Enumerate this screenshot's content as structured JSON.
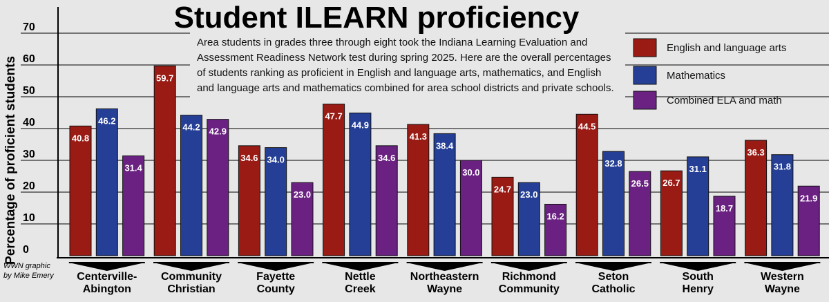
{
  "chart_data": {
    "type": "bar",
    "title": "Student ILEARN proficiency",
    "subtitle": [
      "Area students in grades three through eight took the Indiana Learning Evaluation and",
      "Assessment Readiness Network test during spring 2025. Here are the overall percentages",
      "of students ranking as proficient in English and language arts, mathematics, and English",
      "and language arts and mathematics combined for area school districts and private schools."
    ],
    "ylabel": "Percentage of proficient students",
    "xlabel": "",
    "ylim": [
      0,
      70
    ],
    "yticks": [
      "0",
      "10",
      "20",
      "30",
      "40",
      "50",
      "60",
      "70"
    ],
    "categories": [
      [
        "Centerville-",
        "Abington"
      ],
      [
        "Community",
        "Christian"
      ],
      [
        "Fayette",
        "County"
      ],
      [
        "Nettle",
        "Creek"
      ],
      [
        "Northeastern",
        "Wayne"
      ],
      [
        "Richmond",
        "Community"
      ],
      [
        "Seton",
        "Catholic"
      ],
      [
        "South",
        "Henry"
      ],
      [
        "Western",
        "Wayne"
      ]
    ],
    "series": [
      {
        "name": "English and language arts",
        "color": "#9a1a14",
        "values": [
          40.8,
          59.7,
          34.6,
          47.7,
          41.3,
          24.7,
          44.5,
          26.7,
          36.3
        ],
        "labels": [
          "40.8",
          "59.7",
          "34.6",
          "47.7",
          "41.3",
          "24.7",
          "44.5",
          "26.7",
          "36.3"
        ]
      },
      {
        "name": "Mathematics",
        "color": "#243f95",
        "values": [
          46.2,
          44.2,
          34.0,
          44.9,
          38.4,
          23.0,
          32.8,
          31.1,
          31.8
        ],
        "labels": [
          "46.2",
          "44.2",
          "34.0",
          "44.9",
          "38.4",
          "23.0",
          "32.8",
          "31.1",
          "31.8"
        ]
      },
      {
        "name": "Combined ELA and math",
        "color": "#6a2182",
        "values": [
          31.4,
          42.9,
          23.0,
          34.6,
          30.0,
          16.2,
          26.5,
          18.7,
          21.9
        ],
        "labels": [
          "31.4",
          "42.9",
          "23.0",
          "34.6",
          "30.0",
          "16.2",
          "26.5",
          "18.7",
          "21.9"
        ]
      }
    ],
    "legend_position": "top-right",
    "grid": true
  },
  "credit": [
    "WWN graphic",
    "by Mike Emery"
  ]
}
